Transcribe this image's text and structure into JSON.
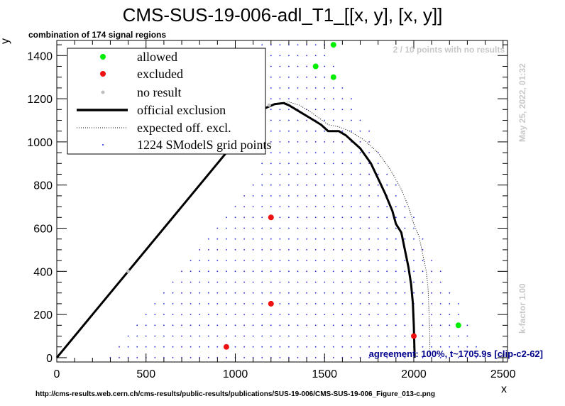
{
  "title": "CMS-SUS-19-006-adl_T1_[[x, y], [x, y]]",
  "subtitle": "combination of 174 signal regions",
  "no_results_note": "2 / 10 points with no results",
  "timestamp": "May 25, 2022, 01:32",
  "kfactor": "k-factor 1.00",
  "agreement": "agreement: 100%, t~1705.9s [clip-c2-62]",
  "source_url": "http://cms-results.web.cern.ch/cms-results/public-results/publications/SUS-19-006/CMS-SUS-19-006_Figure_013-c.png",
  "colors": {
    "allowed": "#00ee00",
    "excluded": "#ee1111",
    "no_result": "#c0c0c0",
    "grid": "#2222dd",
    "official": "#000000"
  },
  "chart_data": {
    "type": "scatter",
    "xlabel": "x",
    "ylabel": "y",
    "xlim": [
      0,
      2525
    ],
    "ylim": [
      -20,
      1470
    ],
    "x_ticks": [
      0,
      500,
      1000,
      1500,
      2000,
      2500
    ],
    "y_ticks": [
      0,
      200,
      400,
      600,
      800,
      1000,
      1200,
      1400
    ],
    "legend": {
      "position": "top-left",
      "entries": [
        {
          "key": "allowed",
          "label": "allowed"
        },
        {
          "key": "excluded",
          "label": "excluded"
        },
        {
          "key": "no_result",
          "label": "no result"
        },
        {
          "key": "official",
          "label": "official exclusion"
        },
        {
          "key": "expected",
          "label": "expected off. excl."
        },
        {
          "key": "grid",
          "label": "1224 SModelS grid points"
        }
      ]
    },
    "allowed_points": [
      [
        1550,
        1450
      ],
      [
        1450,
        1350
      ],
      [
        1550,
        1300
      ],
      [
        2250,
        150
      ]
    ],
    "excluded_points": [
      [
        1200,
        650
      ],
      [
        1200,
        250
      ],
      [
        950,
        50
      ],
      [
        2000,
        100
      ]
    ],
    "no_result_points": [
      [
        400,
        400
      ],
      [
        1190,
        1170
      ]
    ],
    "official_exclusion": [
      [
        0,
        0
      ],
      [
        950,
        950
      ],
      [
        1150,
        1150
      ],
      [
        1220,
        1175
      ],
      [
        1270,
        1180
      ],
      [
        1300,
        1170
      ],
      [
        1360,
        1140
      ],
      [
        1420,
        1110
      ],
      [
        1480,
        1080
      ],
      [
        1520,
        1050
      ],
      [
        1580,
        1050
      ],
      [
        1620,
        1030
      ],
      [
        1700,
        970
      ],
      [
        1760,
        900
      ],
      [
        1800,
        830
      ],
      [
        1840,
        760
      ],
      [
        1880,
        680
      ],
      [
        1900,
        620
      ],
      [
        1930,
        580
      ],
      [
        1950,
        500
      ],
      [
        1970,
        420
      ],
      [
        1985,
        340
      ],
      [
        1995,
        250
      ],
      [
        2000,
        150
      ],
      [
        2005,
        0
      ]
    ],
    "expected_exclusion": [
      [
        1240,
        1180
      ],
      [
        1300,
        1185
      ],
      [
        1360,
        1170
      ],
      [
        1420,
        1140
      ],
      [
        1470,
        1110
      ],
      [
        1520,
        1080
      ],
      [
        1580,
        1070
      ],
      [
        1640,
        1050
      ],
      [
        1720,
        1010
      ],
      [
        1800,
        950
      ],
      [
        1870,
        870
      ],
      [
        1930,
        780
      ],
      [
        1970,
        700
      ],
      [
        2000,
        620
      ],
      [
        2030,
        560
      ],
      [
        2050,
        480
      ],
      [
        2070,
        400
      ],
      [
        2080,
        320
      ],
      [
        2085,
        220
      ],
      [
        2090,
        100
      ],
      [
        2090,
        20
      ]
    ],
    "grid_points": {
      "count": 1224
    }
  }
}
